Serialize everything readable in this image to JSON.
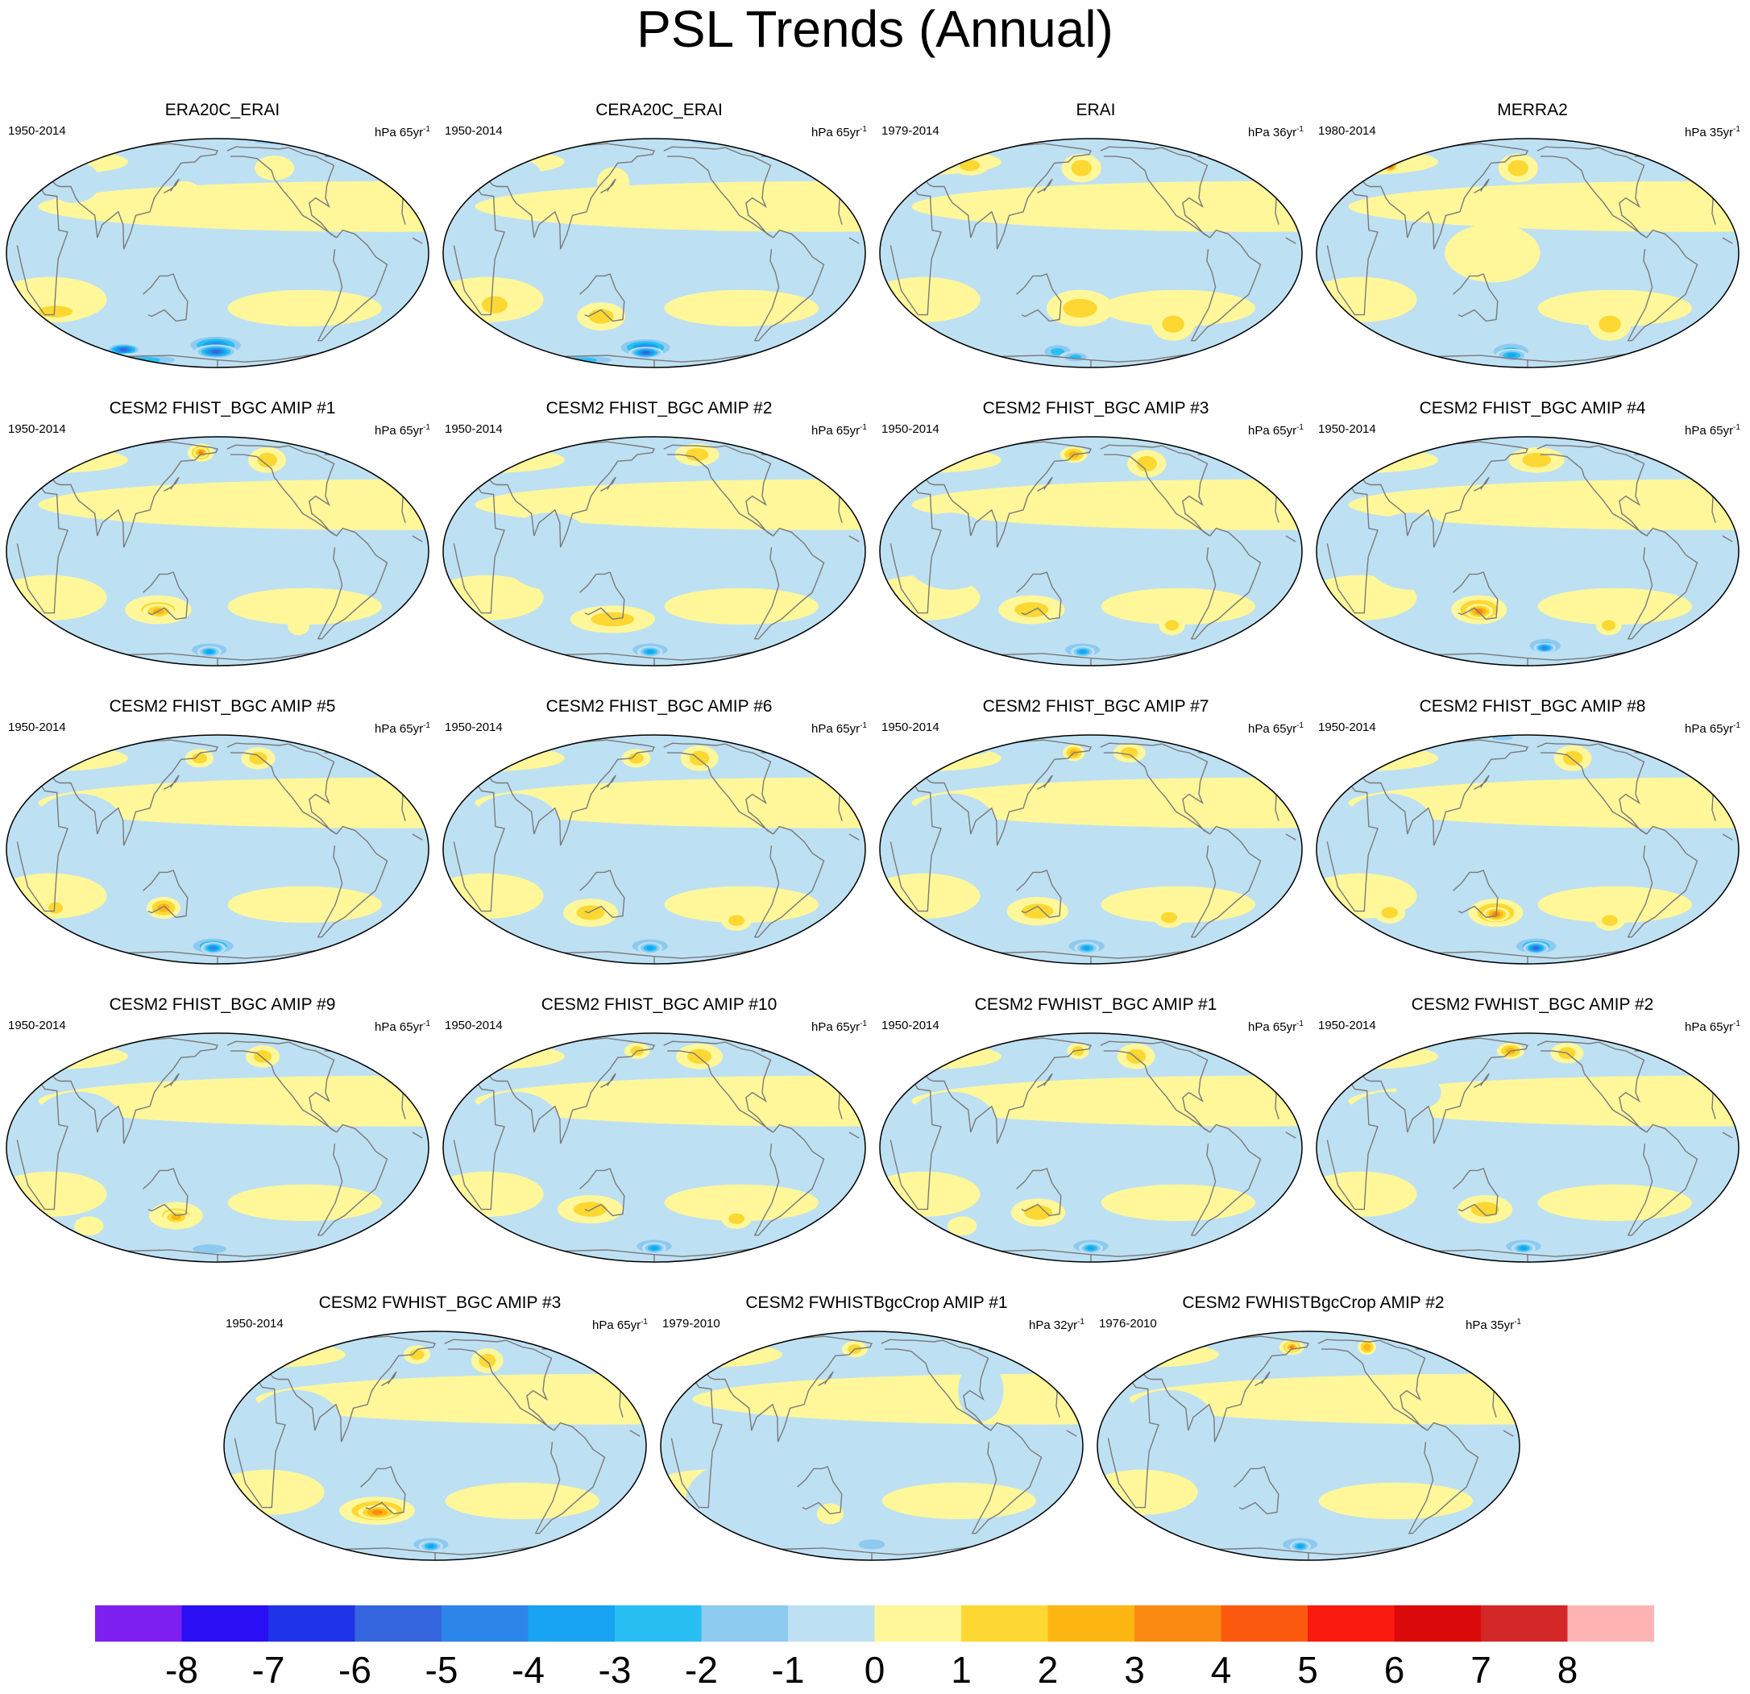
{
  "title": "PSL Trends (Annual)",
  "chart_data": {
    "type": "heatmap",
    "title": "PSL Trends (Annual)",
    "colorbar": {
      "levels": [
        -8,
        -7,
        -6,
        -5,
        -4,
        -3,
        -2,
        -1,
        0,
        1,
        2,
        3,
        4,
        5,
        6,
        7,
        8
      ],
      "labels": [
        "-8",
        "-7",
        "-6",
        "-5",
        "-4",
        "-3",
        "-2",
        "-1",
        "0",
        "1",
        "2",
        "3",
        "4",
        "5",
        "6",
        "7",
        "8"
      ],
      "colors": [
        "#7d1ff0",
        "#2a0ff5",
        "#1f34e8",
        "#3566e0",
        "#2c86ea",
        "#18a4f2",
        "#28bff3",
        "#8dcaf0",
        "#bee0f3",
        "#fff79a",
        "#fdd832",
        "#fdb612",
        "#fb8a12",
        "#fb5a0e",
        "#fb1a0e",
        "#db0a0a",
        "#d42828",
        "#ffb4b4"
      ]
    },
    "panels": [
      {
        "title": "ERA20C_ERAI",
        "period": "1950-2014",
        "units": "hPa 65yr",
        "units_exp": "-1",
        "blobs": [
          [
            -2,
            -56,
            34,
            8,
            -5
          ],
          [
            -2,
            -62,
            25,
            6,
            -6
          ],
          [
            -110,
            -60,
            20,
            5,
            -6
          ],
          [
            -150,
            -32,
            30,
            6,
            2
          ],
          [
            -30,
            30,
            16,
            10,
            1
          ],
          [
            -100,
            -72,
            60,
            8,
            -3
          ],
          [
            100,
            80,
            60,
            8,
            -3
          ],
          [
            60,
            50,
            20,
            10,
            1
          ],
          [
            -140,
            40,
            25,
            15,
            -1
          ]
        ]
      },
      {
        "title": "CERA20C_ERAI",
        "period": "1950-2014",
        "units": "hPa 65yr",
        "units_exp": "-1",
        "blobs": [
          [
            -10,
            -58,
            34,
            8,
            -5
          ],
          [
            -10,
            -63,
            20,
            5,
            -6
          ],
          [
            -145,
            -28,
            22,
            9,
            2
          ],
          [
            -50,
            -35,
            22,
            8,
            2
          ],
          [
            -100,
            -72,
            60,
            7,
            -3
          ],
          [
            100,
            80,
            60,
            8,
            -3
          ],
          [
            -140,
            45,
            25,
            12,
            -1
          ],
          [
            -40,
            40,
            15,
            10,
            1
          ]
        ]
      },
      {
        "title": "ERAI",
        "period": "1979-2014",
        "units": "hPa 36yr",
        "units_exp": "-1",
        "blobs": [
          [
            -10,
            50,
            20,
            12,
            2
          ],
          [
            -10,
            -30,
            30,
            10,
            2
          ],
          [
            -40,
            -62,
            22,
            8,
            -3
          ],
          [
            80,
            -40,
            20,
            10,
            2
          ],
          [
            -130,
            52,
            20,
            8,
            2
          ],
          [
            -20,
            -68,
            20,
            6,
            -3
          ]
        ]
      },
      {
        "title": "MERRA2",
        "period": "1980-2014",
        "units": "hPa 35yr",
        "units_exp": "-1",
        "blobs": [
          [
            -148,
            52,
            8,
            5,
            5
          ],
          [
            -10,
            50,
            20,
            12,
            2
          ],
          [
            -20,
            -62,
            30,
            10,
            -3
          ],
          [
            -20,
            -66,
            20,
            6,
            -4
          ],
          [
            80,
            -40,
            20,
            10,
            2
          ],
          [
            -30,
            0,
            40,
            15,
            1
          ]
        ]
      },
      {
        "title": "CESM2 FHIST_BGC AMIP #1",
        "period": "1950-2014",
        "units": "hPa 65yr",
        "units_exp": "-1",
        "blobs": [
          [
            -20,
            62,
            15,
            10,
            3
          ],
          [
            -20,
            62,
            8,
            5,
            4
          ],
          [
            55,
            55,
            20,
            12,
            2
          ],
          [
            -55,
            -32,
            30,
            8,
            2
          ],
          [
            -55,
            -33,
            14,
            4,
            3
          ],
          [
            -10,
            -62,
            30,
            8,
            -3
          ],
          [
            -10,
            -64,
            14,
            5,
            -4
          ],
          [
            130,
            -5,
            20,
            8,
            -1
          ],
          [
            80,
            -42,
            10,
            6,
            1
          ]
        ]
      },
      {
        "title": "CESM2 FHIST_BGC AMIP #2",
        "period": "1950-2014",
        "units": "hPa 65yr",
        "units_exp": "-1",
        "blobs": [
          [
            50,
            60,
            25,
            12,
            2
          ],
          [
            -150,
            62,
            20,
            8,
            2
          ],
          [
            -40,
            -38,
            40,
            8,
            2
          ],
          [
            -5,
            -62,
            30,
            8,
            -3
          ],
          [
            -5,
            -64,
            15,
            5,
            -4
          ],
          [
            -90,
            0,
            40,
            20,
            -1
          ]
        ]
      },
      {
        "title": "CESM2 FHIST_BGC AMIP #3",
        "period": "1950-2014",
        "units": "hPa 65yr",
        "units_exp": "-1",
        "blobs": [
          [
            -20,
            60,
            15,
            8,
            3
          ],
          [
            60,
            52,
            20,
            12,
            2
          ],
          [
            -55,
            -32,
            30,
            8,
            2
          ],
          [
            -10,
            -62,
            30,
            8,
            -3
          ],
          [
            -10,
            -64,
            14,
            5,
            -4
          ],
          [
            80,
            -42,
            12,
            6,
            2
          ],
          [
            -120,
            0,
            40,
            20,
            -1
          ]
        ]
      },
      {
        "title": "CESM2 FHIST_BGC AMIP #4",
        "period": "1950-2014",
        "units": "hPa 65yr",
        "units_exp": "-1",
        "blobs": [
          [
            10,
            55,
            30,
            12,
            2
          ],
          [
            -45,
            -32,
            25,
            8,
            3
          ],
          [
            -45,
            -33,
            12,
            4,
            4
          ],
          [
            20,
            -58,
            25,
            8,
            -3
          ],
          [
            20,
            -60,
            12,
            4,
            -5
          ],
          [
            80,
            -42,
            12,
            6,
            2
          ],
          [
            -100,
            0,
            40,
            20,
            -1
          ]
        ]
      },
      {
        "title": "CESM2 FHIST_BGC AMIP #5",
        "period": "1950-2014",
        "units": "hPa 65yr",
        "units_exp": "-1",
        "blobs": [
          [
            -20,
            55,
            15,
            8,
            2
          ],
          [
            45,
            55,
            18,
            10,
            2
          ],
          [
            -50,
            -32,
            15,
            6,
            3
          ],
          [
            -5,
            -60,
            30,
            8,
            -4
          ],
          [
            -5,
            -62,
            14,
            5,
            -5
          ],
          [
            -150,
            -32,
            12,
            6,
            2
          ],
          [
            70,
            -32,
            14,
            8,
            1
          ],
          [
            -120,
            10,
            40,
            20,
            -1
          ]
        ]
      },
      {
        "title": "CESM2 FHIST_BGC AMIP #6",
        "period": "1950-2014",
        "units": "hPa 65yr",
        "units_exp": "-1",
        "blobs": [
          [
            -20,
            55,
            15,
            8,
            2
          ],
          [
            50,
            55,
            20,
            12,
            2
          ],
          [
            -60,
            -35,
            25,
            8,
            2
          ],
          [
            -5,
            -60,
            30,
            8,
            -3
          ],
          [
            -5,
            -62,
            14,
            5,
            -4
          ],
          [
            80,
            -40,
            14,
            6,
            2
          ],
          [
            -120,
            10,
            40,
            20,
            -1
          ]
        ]
      },
      {
        "title": "CESM2 FHIST_BGC AMIP #7",
        "period": "1950-2014",
        "units": "hPa 65yr",
        "units_exp": "-1",
        "blobs": [
          [
            -20,
            60,
            12,
            8,
            3
          ],
          [
            45,
            60,
            18,
            10,
            2
          ],
          [
            -50,
            -34,
            28,
            8,
            2
          ],
          [
            -5,
            -60,
            30,
            8,
            -3
          ],
          [
            -5,
            -62,
            14,
            5,
            -4
          ],
          [
            75,
            -38,
            14,
            6,
            2
          ],
          [
            -150,
            65,
            25,
            8,
            -1
          ],
          [
            -120,
            10,
            40,
            20,
            -1
          ]
        ]
      },
      {
        "title": "CESM2 FHIST_BGC AMIP #8",
        "period": "1950-2014",
        "units": "hPa 65yr",
        "units_exp": "-1",
        "blobs": [
          [
            -30,
            -35,
            25,
            8,
            3
          ],
          [
            -30,
            -36,
            12,
            4,
            4
          ],
          [
            10,
            -60,
            30,
            8,
            -4
          ],
          [
            10,
            -62,
            14,
            5,
            -6
          ],
          [
            -130,
            -35,
            14,
            6,
            2
          ],
          [
            80,
            -40,
            14,
            6,
            2
          ],
          [
            50,
            55,
            20,
            12,
            2
          ],
          [
            -40,
            80,
            30,
            8,
            -2
          ],
          [
            -120,
            10,
            40,
            20,
            -1
          ]
        ]
      },
      {
        "title": "CESM2 FHIST_BGC AMIP #9",
        "period": "1950-2014",
        "units": "hPa 65yr",
        "units_exp": "-1",
        "blobs": [
          [
            -40,
            -38,
            25,
            8,
            2
          ],
          [
            -40,
            -39,
            12,
            4,
            3
          ],
          [
            50,
            55,
            18,
            10,
            2
          ],
          [
            -10,
            -65,
            40,
            8,
            -2
          ],
          [
            -130,
            -45,
            14,
            6,
            1
          ],
          [
            -120,
            10,
            40,
            20,
            -1
          ]
        ]
      },
      {
        "title": "CESM2 FHIST_BGC AMIP #10",
        "period": "1950-2014",
        "units": "hPa 65yr",
        "units_exp": "-1",
        "blobs": [
          [
            50,
            55,
            25,
            12,
            2
          ],
          [
            -20,
            60,
            14,
            8,
            2
          ],
          [
            -60,
            -34,
            30,
            8,
            2
          ],
          [
            0,
            -62,
            30,
            8,
            -3
          ],
          [
            0,
            -64,
            14,
            5,
            -4
          ],
          [
            80,
            -40,
            14,
            6,
            2
          ],
          [
            -120,
            10,
            40,
            20,
            -1
          ]
        ]
      },
      {
        "title": "CESM2 FWHIST_BGC AMIP #1",
        "period": "1950-2014",
        "units": "hPa 65yr",
        "units_exp": "-1",
        "blobs": [
          [
            -15,
            60,
            12,
            8,
            2
          ],
          [
            50,
            55,
            20,
            12,
            2
          ],
          [
            -50,
            -36,
            25,
            8,
            2
          ],
          [
            0,
            -62,
            30,
            8,
            -3
          ],
          [
            0,
            -64,
            14,
            5,
            -4
          ],
          [
            -130,
            -45,
            14,
            6,
            1
          ],
          [
            -120,
            10,
            40,
            20,
            -1
          ]
        ]
      },
      {
        "title": "CESM2 FWHIST_BGC AMIP #2",
        "period": "1950-2014",
        "units": "hPa 65yr",
        "units_exp": "-1",
        "blobs": [
          [
            -20,
            60,
            15,
            8,
            3
          ],
          [
            45,
            58,
            18,
            10,
            2
          ],
          [
            -40,
            -34,
            25,
            8,
            2
          ],
          [
            -5,
            -62,
            30,
            8,
            -3
          ],
          [
            -5,
            -64,
            14,
            5,
            -4
          ],
          [
            -100,
            30,
            20,
            10,
            -1
          ],
          [
            -120,
            10,
            40,
            20,
            -1
          ]
        ]
      },
      {
        "title": "CESM2 FWHIST_BGC AMIP #3",
        "period": "1950-2014",
        "units": "hPa 65yr",
        "units_exp": "-1",
        "blobs": [
          [
            -20,
            55,
            14,
            8,
            2
          ],
          [
            55,
            50,
            16,
            10,
            2
          ],
          [
            -55,
            -36,
            35,
            8,
            3
          ],
          [
            -55,
            -37,
            18,
            4,
            4
          ],
          [
            -5,
            -62,
            30,
            8,
            -3
          ],
          [
            -5,
            -64,
            14,
            5,
            -4
          ],
          [
            -120,
            10,
            40,
            20,
            -1
          ]
        ]
      },
      {
        "title": "CESM2 FWHISTBgcCrop AMIP #1",
        "period": "1979-2010",
        "units": "hPa 32yr",
        "units_exp": "-1",
        "blobs": [
          [
            -20,
            60,
            14,
            8,
            2
          ],
          [
            -160,
            72,
            20,
            6,
            2
          ],
          [
            0,
            -62,
            30,
            8,
            -2
          ],
          [
            -40,
            -38,
            12,
            6,
            1
          ],
          [
            -130,
            -30,
            40,
            20,
            -1
          ],
          [
            100,
            30,
            20,
            20,
            -1
          ]
        ]
      },
      {
        "title": "CESM2 FWHISTBgcCrop AMIP #2",
        "period": "1976-2010",
        "units": "hPa 35yr",
        "units_exp": "-1",
        "blobs": [
          [
            -20,
            62,
            14,
            8,
            3
          ],
          [
            -20,
            62,
            7,
            4,
            4
          ],
          [
            70,
            62,
            10,
            8,
            3
          ],
          [
            -130,
            70,
            30,
            8,
            -2
          ],
          [
            -10,
            -62,
            30,
            8,
            -3
          ],
          [
            -10,
            -64,
            12,
            5,
            -4
          ],
          [
            -120,
            10,
            40,
            20,
            -1
          ]
        ]
      }
    ]
  }
}
